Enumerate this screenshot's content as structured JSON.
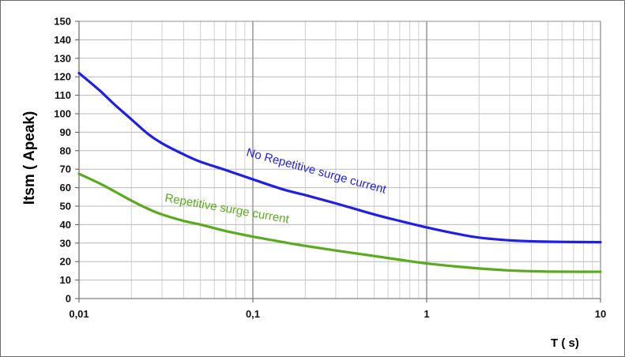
{
  "chart_data": {
    "type": "line",
    "xlabel": "T ( s)",
    "ylabel": "Itsm ( Apeak)",
    "x_scale": "log",
    "xlim": [
      0.01,
      10
    ],
    "ylim": [
      0,
      150
    ],
    "x_ticks": [
      "0,01",
      "0,1",
      "1",
      "10"
    ],
    "y_ticks": [
      "0",
      "10",
      "20",
      "30",
      "40",
      "50",
      "60",
      "70",
      "80",
      "90",
      "100",
      "110",
      "120",
      "130",
      "140",
      "150"
    ],
    "grid": true,
    "series": [
      {
        "name": "No Repetitive surge current",
        "color": "#1f1fe6",
        "x": [
          0.01,
          0.013,
          0.016,
          0.02,
          0.025,
          0.03,
          0.04,
          0.05,
          0.07,
          0.1,
          0.15,
          0.2,
          0.3,
          0.5,
          0.7,
          1,
          1.5,
          2,
          3,
          4,
          5,
          7,
          10
        ],
        "y": [
          122,
          113,
          105,
          97,
          89,
          84,
          78,
          74,
          69.5,
          64.5,
          59,
          56,
          51.5,
          45.5,
          42,
          38.5,
          35,
          33,
          31.5,
          31,
          30.8,
          30.6,
          30.5
        ]
      },
      {
        "name": "Repetitive surge current",
        "color": "#5aaa1e",
        "x": [
          0.01,
          0.013,
          0.016,
          0.02,
          0.025,
          0.03,
          0.04,
          0.05,
          0.07,
          0.1,
          0.15,
          0.2,
          0.3,
          0.5,
          0.7,
          1,
          1.5,
          2,
          3,
          4,
          5,
          7,
          10
        ],
        "y": [
          67.5,
          62.5,
          58,
          53,
          48.5,
          45.5,
          42,
          40,
          36.5,
          33.5,
          30.5,
          28.5,
          26,
          23,
          21,
          19,
          17.3,
          16.3,
          15.2,
          14.8,
          14.6,
          14.5,
          14.5
        ]
      }
    ]
  }
}
